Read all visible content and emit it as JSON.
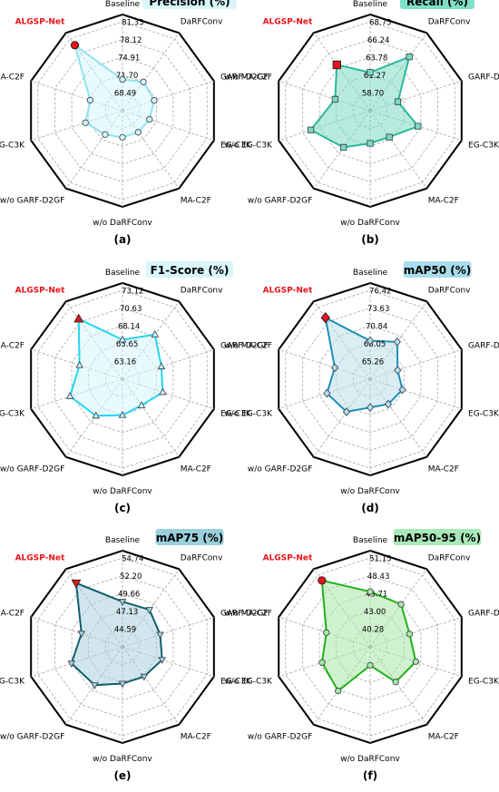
{
  "axes_order": [
    "Baseline",
    "DaRFConv",
    "GARF-D2GF",
    "EG-C3K",
    "MA-C2F",
    "w/o DaRFConv",
    "w/o GARF-D2GF",
    "w/o EG-C3K",
    "w/o MA-C2F",
    "ALGSP-Net"
  ],
  "highlight": {
    "label": "ALGSP-Net",
    "color": "#e8141a"
  },
  "chart_data": [
    {
      "type": "radar",
      "panel": "(a)",
      "title": "Precision (%)",
      "title_bg": "#d9f7fb",
      "color": "#8fe3f0",
      "fill": "#d6f6fb",
      "edge": "#3a4a55",
      "marker": "circle",
      "ticks": [
        "68.49",
        "71.70",
        "74.91",
        "78.12",
        "81.33"
      ],
      "range": [
        65.28,
        81.33
      ],
      "categories": [
        "Baseline",
        "DaRFConv",
        "GARF-D2GF",
        "EG-C3K",
        "MA-C2F",
        "w/o DaRFConv",
        "w/o GARF-D2GF",
        "w/o EG-C3K",
        "w/o MA-C2F",
        "ALGSP-Net"
      ],
      "values": [
        70.9,
        71.7,
        71.3,
        70.4,
        70.1,
        70.1,
        70.6,
        72.3,
        71.4,
        79.9
      ]
    },
    {
      "type": "radar",
      "panel": "(b)",
      "title": "Recall (%)",
      "title_bg": "#7fe0c8",
      "color": "#2bb89a",
      "fill": "#7dd9c2",
      "edge": "#3a4a55",
      "marker": "square",
      "ticks": [
        "58.70",
        "61.27",
        "63.78",
        "66.24",
        "68.75"
      ],
      "range": [
        56.19,
        68.75
      ],
      "categories": [
        "Baseline",
        "DaRFConv",
        "GARF-D2GF",
        "EG-C3K",
        "MA-C2F",
        "w/o DaRFConv",
        "w/o GARF-D2GF",
        "w/o EG-C3K",
        "w/o MA-C2F",
        "ALGSP-Net"
      ],
      "values": [
        61.6,
        65.6,
        60.3,
        63.3,
        60.8,
        60.8,
        62.6,
        65.0,
        61.4,
        64.2
      ]
    },
    {
      "type": "radar",
      "panel": "(c)",
      "title": "F1-Score (%)",
      "title_bg": "#d9f7fb",
      "color": "#22d6ef",
      "fill": "#d6f6fb",
      "edge": "#3a4a55",
      "marker": "triangle",
      "ticks": [
        "63.16",
        "65.65",
        "68.14",
        "70.63",
        "73.12"
      ],
      "range": [
        60.67,
        73.12
      ],
      "categories": [
        "Baseline",
        "DaRFConv",
        "GARF-D2GF",
        "EG-C3K",
        "MA-C2F",
        "w/o DaRFConv",
        "w/o GARF-D2GF",
        "w/o EG-C3K",
        "w/o MA-C2F",
        "ALGSP-Net"
      ],
      "values": [
        66.2,
        68.4,
        66.4,
        66.6,
        65.2,
        65.7,
        67.0,
        68.4,
        67.0,
        71.1
      ]
    },
    {
      "type": "radar",
      "panel": "(d)",
      "title": "mAP50 (%)",
      "title_bg": "#a9dcec",
      "color": "#1f8fb8",
      "fill": "#b9dfea",
      "edge": "#3a4a55",
      "marker": "diamond",
      "ticks": [
        "65.26",
        "68.05",
        "70.84",
        "73.63",
        "76.42"
      ],
      "range": [
        62.47,
        76.42
      ],
      "categories": [
        "Baseline",
        "DaRFConv",
        "GARF-D2GF",
        "EG-C3K",
        "MA-C2F",
        "w/o DaRFConv",
        "w/o GARF-D2GF",
        "w/o EG-C3K",
        "w/o MA-C2F",
        "ALGSP-Net"
      ],
      "values": [
        68.5,
        69.7,
        67.0,
        67.8,
        67.3,
        66.9,
        68.8,
        69.6,
        68.3,
        74.4
      ]
    },
    {
      "type": "radar",
      "panel": "(e)",
      "title": "mAP75 (%)",
      "title_bg": "#9ccfdc",
      "color": "#0f5f6e",
      "fill": "#a9d0dc",
      "edge": "#3a4a55",
      "marker": "triangle-down",
      "ticks": [
        "44.59",
        "47.13",
        "49.66",
        "52.20",
        "54.74"
      ],
      "range": [
        42.05,
        54.74
      ],
      "categories": [
        "Baseline",
        "DaRFConv",
        "GARF-D2GF",
        "EG-C3K",
        "MA-C2F",
        "w/o DaRFConv",
        "w/o GARF-D2GF",
        "w/o EG-C3K",
        "w/o MA-C2F",
        "ALGSP-Net"
      ],
      "values": [
        48.5,
        48.6,
        47.7,
        48.0,
        47.3,
        47.3,
        48.8,
        49.7,
        48.2,
        53.3
      ]
    },
    {
      "type": "radar",
      "panel": "(f)",
      "title": "mAP50-95 (%)",
      "title_bg": "#a9e8b8",
      "color": "#1fb21a",
      "fill": "#a8e6a4",
      "edge": "#3a4a55",
      "marker": "circle",
      "ticks": [
        "40.28",
        "43.00",
        "45.71",
        "48.43",
        "51.15"
      ],
      "range": [
        37.57,
        51.15
      ],
      "categories": [
        "Baseline",
        "DaRFConv",
        "GARF-D2GF",
        "EG-C3K",
        "MA-C2F",
        "w/o DaRFConv",
        "w/o GARF-D2GF",
        "w/o EG-C3K",
        "w/o MA-C2F",
        "ALGSP-Net"
      ],
      "values": [
        46.0,
        45.6,
        43.9,
        44.9,
        44.2,
        40.4,
        45.9,
        45.3,
        44.6,
        50.1
      ]
    }
  ]
}
